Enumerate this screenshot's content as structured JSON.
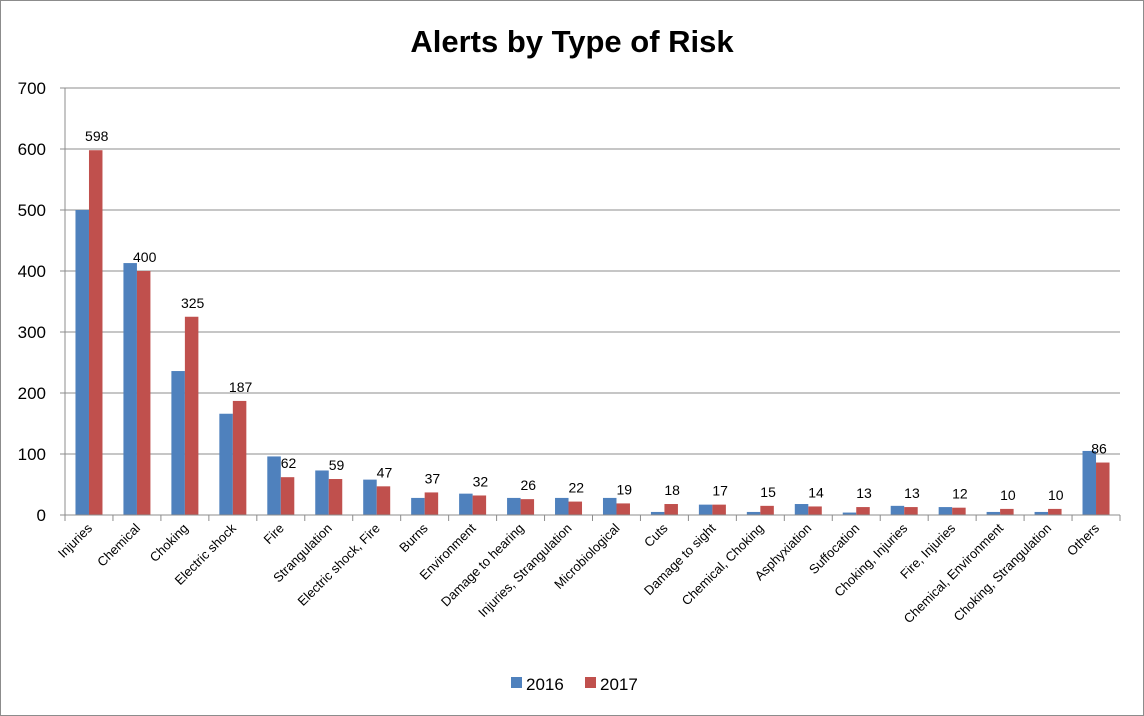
{
  "chart_data": {
    "type": "bar",
    "title": "Alerts by Type of Risk",
    "xlabel": "",
    "ylabel": "",
    "ylim": [
      0,
      700
    ],
    "yticks": [
      0,
      100,
      200,
      300,
      400,
      500,
      600,
      700
    ],
    "grid": true,
    "legend_position": "bottom",
    "categories": [
      "Injuries",
      "Chemical",
      "Choking",
      "Electric shock",
      "Fire",
      "Strangulation",
      "Electric shock, Fire",
      "Burns",
      "Environment",
      "Damage to hearing",
      "Injuries, Strangulation",
      "Microbiological",
      "Cuts",
      "Damage to sight",
      "Chemical, Choking",
      "Asphyxiation",
      "Suffocation",
      "Choking, Injuries",
      "Fire, Injuries",
      "Chemical, Environment",
      "Choking, Strangulation",
      "Others"
    ],
    "series": [
      {
        "name": "2016",
        "color": "#4f81bd",
        "values": [
          500,
          413,
          236,
          166,
          96,
          73,
          58,
          28,
          35,
          28,
          28,
          28,
          5,
          17,
          5,
          18,
          4,
          15,
          13,
          5,
          5,
          105
        ]
      },
      {
        "name": "2017",
        "color": "#c0504d",
        "values": [
          598,
          400,
          325,
          187,
          62,
          59,
          47,
          37,
          32,
          26,
          22,
          19,
          18,
          17,
          15,
          14,
          13,
          13,
          12,
          10,
          10,
          86
        ]
      }
    ],
    "data_labels_series": "2017"
  }
}
